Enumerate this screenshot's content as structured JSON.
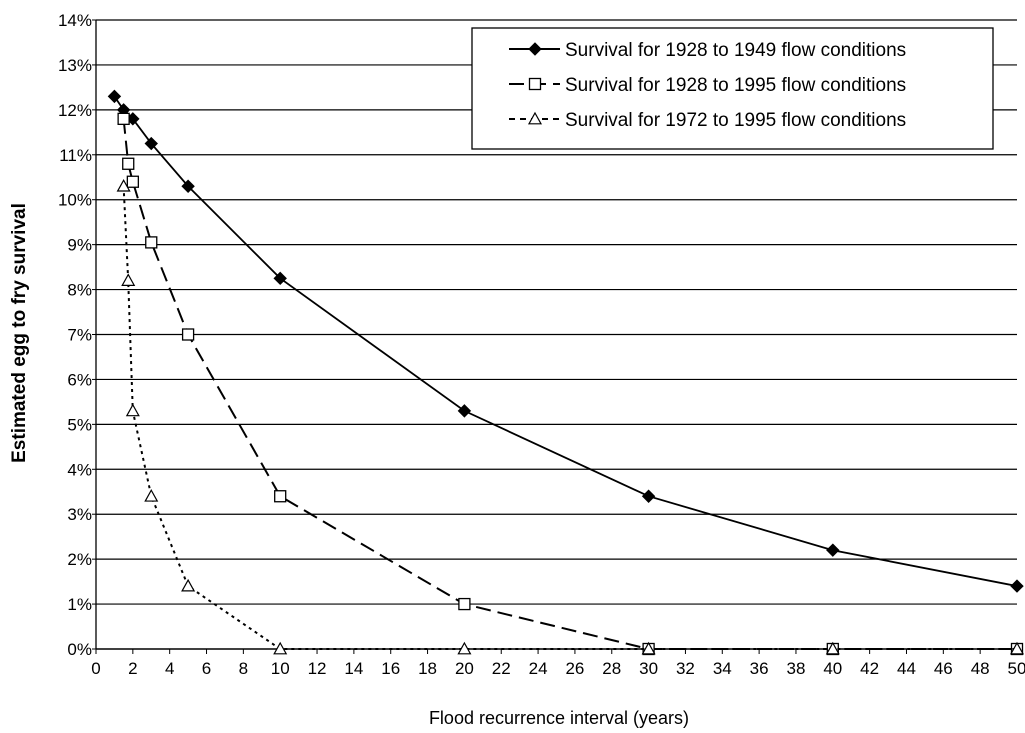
{
  "chart_data": {
    "type": "line",
    "xlabel": "Flood recurrence interval  (years)",
    "ylabel": "Estimated egg to fry survival",
    "xlim": [
      0,
      50
    ],
    "ylim": [
      0,
      14
    ],
    "x_ticks": [
      "0",
      "2",
      "4",
      "6",
      "8",
      "10",
      "12",
      "14",
      "16",
      "18",
      "20",
      "22",
      "24",
      "26",
      "28",
      "30",
      "32",
      "34",
      "36",
      "38",
      "40",
      "42",
      "44",
      "46",
      "48",
      "50"
    ],
    "y_ticks": [
      "0%",
      "1%",
      "2%",
      "3%",
      "4%",
      "5%",
      "6%",
      "7%",
      "8%",
      "9%",
      "10%",
      "11%",
      "12%",
      "13%",
      "14%"
    ],
    "grid": "horizontal",
    "legend_position": "top-right",
    "series": [
      {
        "name": "Survival for 1928 to 1949 flow conditions",
        "marker": "filled-diamond",
        "line": "solid",
        "x": [
          1,
          1.5,
          2,
          3,
          5,
          10,
          20,
          30,
          40,
          50
        ],
        "y": [
          12.3,
          12.0,
          11.8,
          11.25,
          10.3,
          8.25,
          5.3,
          3.4,
          2.2,
          1.4
        ]
      },
      {
        "name": "Survival for  1928 to 1995 flow conditions",
        "marker": "open-square",
        "line": "long-dash",
        "x": [
          1.5,
          1.75,
          2,
          3,
          5,
          10,
          20,
          30,
          40,
          50
        ],
        "y": [
          11.8,
          10.8,
          10.4,
          9.05,
          7.0,
          3.4,
          1.0,
          0.0,
          0.0,
          0.0
        ]
      },
      {
        "name": "Survival for 1972 to 1995 flow conditions",
        "marker": "open-triangle",
        "line": "dotted",
        "x": [
          1.5,
          1.75,
          2,
          3,
          5,
          10,
          20,
          30,
          40,
          50
        ],
        "y": [
          10.3,
          8.2,
          5.3,
          3.4,
          1.4,
          0.0,
          0.0,
          0.0,
          0.0,
          0.0
        ]
      }
    ],
    "colors": {
      "series": "#000000",
      "grid": "#000000",
      "background": "#ffffff"
    }
  }
}
